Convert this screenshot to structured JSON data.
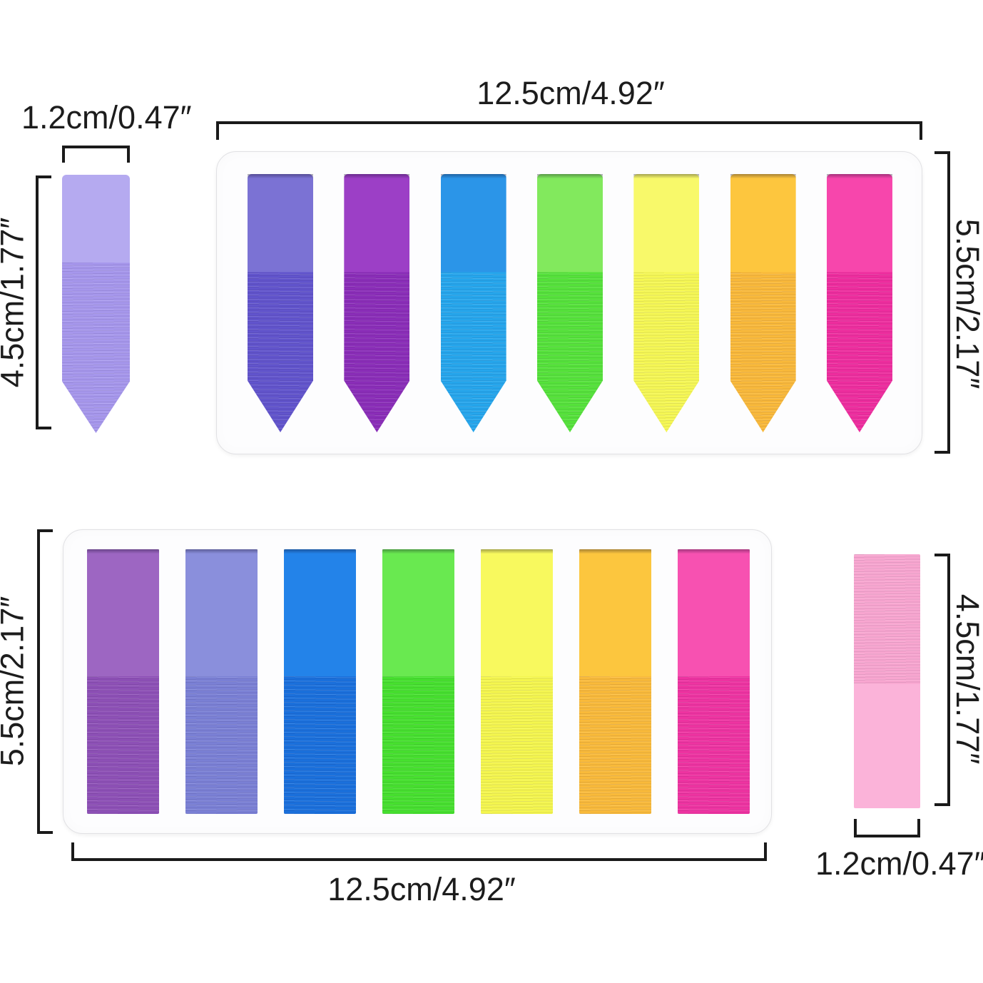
{
  "style": {
    "background": "#ffffff",
    "line_color": "#1a1a1a",
    "text_color": "#1c1c1c",
    "card_background": "#fdfdfe",
    "card_border": "#e1e1e4"
  },
  "figures": {
    "single_top_left": {
      "width_label": "1.2cm/0.47″",
      "height_label": "4.5cm/1.77″",
      "tab": {
        "name": "lavender",
        "top_color": "#b5aaf0",
        "bottom_color": "#a697ec"
      }
    },
    "card_top": {
      "width_label": "12.5cm/4.92″",
      "height_label": "5.5cm/2.17″",
      "tabs": [
        {
          "name": "violet",
          "top_color": "#7b72d4",
          "bottom_color": "#6154cc"
        },
        {
          "name": "purple",
          "top_color": "#9c3fc6",
          "bottom_color": "#8a2db8"
        },
        {
          "name": "blue",
          "top_color": "#2b95e8",
          "bottom_color": "#25a6ec"
        },
        {
          "name": "green",
          "top_color": "#82e95d",
          "bottom_color": "#55e23a"
        },
        {
          "name": "yellow",
          "top_color": "#f8f96a",
          "bottom_color": "#f5f754"
        },
        {
          "name": "orange",
          "top_color": "#fdc63e",
          "bottom_color": "#f9b93a"
        },
        {
          "name": "pink",
          "top_color": "#f746ac",
          "bottom_color": "#ee2d9e"
        }
      ]
    },
    "card_bottom": {
      "width_label": "12.5cm/4.92″",
      "height_label": "5.5cm/2.17″",
      "tabs": [
        {
          "name": "purple",
          "top_color": "#9d66c2",
          "bottom_color": "#8d50b6"
        },
        {
          "name": "periwinkle",
          "top_color": "#8a8fdc",
          "bottom_color": "#7a80d5"
        },
        {
          "name": "blue",
          "top_color": "#2383e9",
          "bottom_color": "#1a70dc"
        },
        {
          "name": "green",
          "top_color": "#69e950",
          "bottom_color": "#46e02e"
        },
        {
          "name": "yellow",
          "top_color": "#f8f95e",
          "bottom_color": "#f4f64e"
        },
        {
          "name": "orange",
          "top_color": "#fcc63e",
          "bottom_color": "#f9ba3a"
        },
        {
          "name": "pink",
          "top_color": "#f751b1",
          "bottom_color": "#ee33a1"
        }
      ]
    },
    "single_bottom_right": {
      "width_label": "1.2cm/0.47″",
      "height_label": "4.5cm/1.77″",
      "tab": {
        "name": "pink",
        "top_color": "#f8a6d0",
        "bottom_color": "#fbb3d9"
      }
    }
  }
}
